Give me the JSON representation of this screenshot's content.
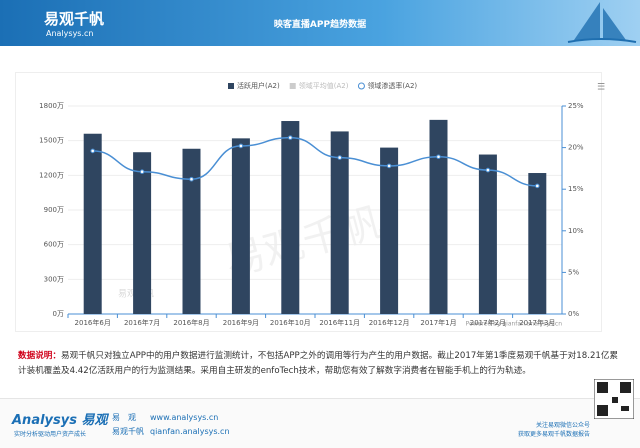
{
  "header": {
    "brand": "易观千帆",
    "brand_sub": "Analysys.cn",
    "title": "映客直播APP趋势数据"
  },
  "chart_data": {
    "type": "bar_line",
    "categories": [
      "2016年6月",
      "2016年7月",
      "2016年8月",
      "2016年9月",
      "2016年10月",
      "2016年11月",
      "2016年12月",
      "2017年1月",
      "2017年2月",
      "2017年3月"
    ],
    "series": [
      {
        "name": "活跃用户(A2)",
        "color": "#2f4560",
        "type": "bar",
        "values": [
          1560,
          1400,
          1430,
          1520,
          1670,
          1580,
          1440,
          1680,
          1380,
          1220
        ]
      },
      {
        "name": "领域渗透率(A2)",
        "color": "#4a8fd4",
        "type": "line",
        "axis": "y2",
        "values": [
          19.6,
          17.1,
          16.2,
          20.2,
          21.2,
          18.8,
          17.8,
          18.9,
          17.3,
          15.4
        ]
      }
    ],
    "hidden_series": [
      {
        "name": "领域平均值(A2)",
        "color": "#cccccc"
      }
    ],
    "ylim": [
      0,
      1800
    ],
    "yticks": [
      {
        "value": 0,
        "label": "0万"
      },
      {
        "value": 300,
        "label": "300万"
      },
      {
        "value": 600,
        "label": "600万"
      },
      {
        "value": 900,
        "label": "900万"
      },
      {
        "value": 1200,
        "label": "1200万"
      },
      {
        "value": 1500,
        "label": "1500万"
      },
      {
        "value": 1800,
        "label": "1800万"
      }
    ],
    "y2lim": [
      0,
      25
    ],
    "y2ticks": [
      {
        "value": 0,
        "label": "0%"
      },
      {
        "value": 5,
        "label": "5%"
      },
      {
        "value": 10,
        "label": "10%"
      },
      {
        "value": 15,
        "label": "15%"
      },
      {
        "value": 20,
        "label": "20%"
      },
      {
        "value": 25,
        "label": "25%"
      }
    ],
    "grid": true,
    "legend": "top",
    "watermark": "易观千帆",
    "watermark_small": "易观千帆",
    "credit": "Powered by qianfan.analysys.cn"
  },
  "note": {
    "label": "数据说明：",
    "text": "易观千帆只对独立APP中的用户数据进行监测统计，不包括APP之外的调用等行为产生的用户数据。截止2017年第1季度易观千帆基于对18.21亿累计装机覆盖及4.42亿活跃用户的行为监测结果。采用自主研发的enfoTech技术，帮助您有效了解数字消费者在智能手机上的行为轨迹。"
  },
  "footer": {
    "logo": "Analysys 易观",
    "slogan": "实时分析驱动用户资产成长",
    "links": [
      {
        "name": "易　观",
        "url": "www.analysys.cn"
      },
      {
        "name": "易观千帆",
        "url": "qianfan.analysys.cn"
      }
    ],
    "qr_1": "关注易观微信公众号",
    "qr_2": "获取更多易观千帆数据报告"
  }
}
